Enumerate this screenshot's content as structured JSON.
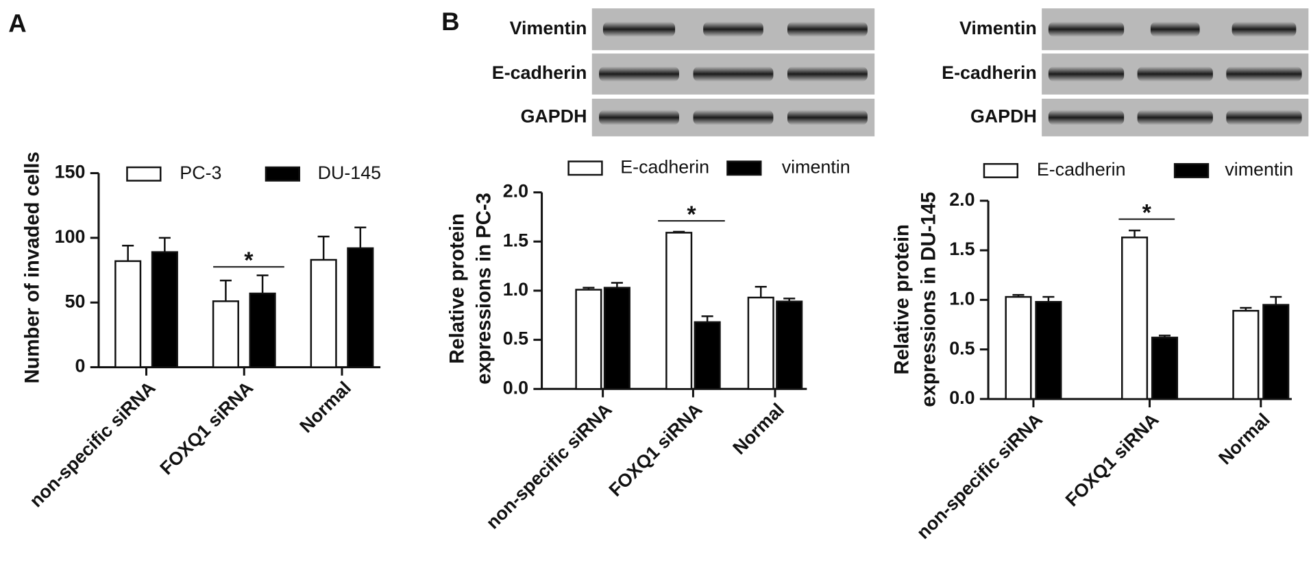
{
  "panel_labels": [
    "A",
    "B"
  ],
  "blots": [
    {
      "rows": [
        "Vimentin",
        "E-cadherin",
        "GAPDH"
      ]
    },
    {
      "rows": [
        "Vimentin",
        "E-cadherin",
        "GAPDH"
      ]
    }
  ],
  "chart_data": [
    {
      "type": "bar",
      "ylabel": [
        "Number of invaded cells"
      ],
      "categories": [
        "non-specific siRNA",
        "FOXQ1 siRNA",
        "Normal"
      ],
      "series": [
        {
          "name": "PC-3",
          "color": "#ffffff",
          "values": [
            82,
            51,
            83
          ],
          "errors": [
            12,
            16,
            18
          ]
        },
        {
          "name": "DU-145",
          "color": "#000000",
          "values": [
            89,
            57,
            92
          ],
          "errors": [
            11,
            14,
            16
          ]
        }
      ],
      "ylim": [
        0,
        150
      ],
      "yticks": [
        0,
        50,
        100,
        150
      ],
      "annotation": "*"
    },
    {
      "type": "bar",
      "ylabel": [
        "Relative protein",
        "expressions in PC-3"
      ],
      "categories": [
        "non-specific siRNA",
        "FOXQ1 siRNA",
        "Normal"
      ],
      "series": [
        {
          "name": "E-cadherin",
          "color": "#ffffff",
          "values": [
            1.01,
            1.59,
            0.93
          ],
          "errors": [
            0.02,
            0.01,
            0.11
          ]
        },
        {
          "name": "vimentin",
          "color": "#000000",
          "values": [
            1.03,
            0.68,
            0.89
          ],
          "errors": [
            0.05,
            0.06,
            0.03
          ]
        }
      ],
      "ylim": [
        0,
        2
      ],
      "yticks": [
        {
          "value": 0,
          "label": "0.0"
        },
        0.5,
        {
          "value": 1,
          "label": "1.0"
        },
        1.5,
        {
          "value": 2,
          "label": "2.0"
        }
      ],
      "annotation": "*"
    },
    {
      "type": "bar",
      "ylabel": [
        "Relative protein",
        "expressions in DU-145"
      ],
      "categories": [
        "non-specific siRNA",
        "FOXQ1 siRNA",
        "Normal"
      ],
      "series": [
        {
          "name": "E-cadherin",
          "color": "#ffffff",
          "values": [
            1.03,
            1.63,
            0.89
          ],
          "errors": [
            0.02,
            0.07,
            0.03
          ]
        },
        {
          "name": "vimentin",
          "color": "#000000",
          "values": [
            0.98,
            0.62,
            0.95
          ],
          "errors": [
            0.05,
            0.02,
            0.08
          ]
        }
      ],
      "ylim": [
        0,
        2
      ],
      "yticks": [
        {
          "value": 0,
          "label": "0.0"
        },
        0.5,
        {
          "value": 1,
          "label": "1.0"
        },
        1.5,
        {
          "value": 2,
          "label": "2.0"
        }
      ],
      "annotation": "*"
    }
  ]
}
